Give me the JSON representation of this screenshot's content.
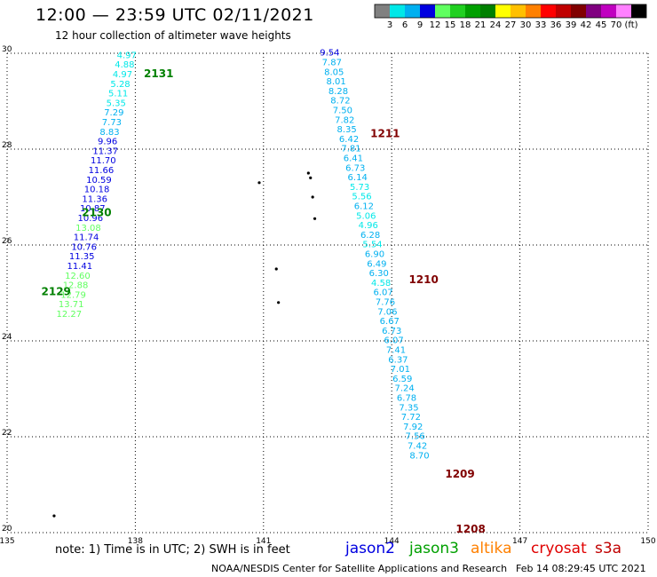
{
  "header": {
    "title": "12:00 — 23:59 UTC 02/11/2021",
    "subtitle": "12 hour collection of altimeter wave heights"
  },
  "legend_bar": {
    "colors": [
      "#808080",
      "#00e8e8",
      "#00b0f0",
      "#0000e0",
      "#60ff60",
      "#20d020",
      "#00a000",
      "#008000",
      "#ffff00",
      "#ffc000",
      "#ff8000",
      "#ff0000",
      "#c00000",
      "#800000",
      "#800080",
      "#c000c0",
      "#ff80ff",
      "#000000"
    ],
    "labels": [
      "3",
      "6",
      "9",
      "12",
      "15",
      "18",
      "21",
      "24",
      "27",
      "30",
      "33",
      "36",
      "39",
      "42",
      "45",
      "70",
      "(ft)"
    ]
  },
  "footer": {
    "note": "note: 1) Time is in UTC; 2) SWH is in feet",
    "credit": "NOAA/NESDIS Center for Satellite Applications and Research",
    "generated": "Feb 14 08:29:45 UTC 2021"
  },
  "satellites": [
    {
      "name": "jason2",
      "color": "#0000e0"
    },
    {
      "name": "jason3",
      "color": "#00a000"
    },
    {
      "name": "altika",
      "color": "#ff8000"
    },
    {
      "name": "cryosat",
      "color": "#e00000"
    },
    {
      "name": "s3a",
      "color": "#c00000"
    }
  ],
  "chart_data": {
    "type": "scatter",
    "xlim": [
      135,
      150
    ],
    "ylim": [
      20,
      30
    ],
    "x_ticks": [
      135,
      138,
      141,
      144,
      147,
      150
    ],
    "y_ticks": [
      20,
      22,
      24,
      26,
      28,
      30
    ],
    "grid": true,
    "track_labels": [
      {
        "text": "2131",
        "lon": 138.2,
        "lat": 29.5,
        "color": "#008000"
      },
      {
        "text": "2130",
        "lon": 136.75,
        "lat": 26.6,
        "color": "#008000"
      },
      {
        "text": "2129",
        "lon": 135.8,
        "lat": 24.95,
        "color": "#008000"
      },
      {
        "text": "1211",
        "lon": 143.5,
        "lat": 28.25,
        "color": "#800000"
      },
      {
        "text": "1210",
        "lon": 144.4,
        "lat": 25.2,
        "color": "#800000"
      },
      {
        "text": "1209",
        "lon": 145.25,
        "lat": 21.15,
        "color": "#800000"
      },
      {
        "text": "1208",
        "lon": 145.5,
        "lat": 20.0,
        "color": "#800000"
      }
    ],
    "series": [
      {
        "name": "2131",
        "color_scale": true,
        "points": [
          {
            "lon": 137.8,
            "lat": 29.9,
            "v": 4.97
          },
          {
            "lon": 137.75,
            "lat": 29.7,
            "v": 4.88
          },
          {
            "lon": 137.7,
            "lat": 29.5,
            "v": 4.97
          },
          {
            "lon": 137.65,
            "lat": 29.3,
            "v": 5.28
          },
          {
            "lon": 137.6,
            "lat": 29.1,
            "v": 5.11
          },
          {
            "lon": 137.55,
            "lat": 28.9,
            "v": 5.35
          },
          {
            "lon": 137.5,
            "lat": 28.7,
            "v": 7.29
          },
          {
            "lon": 137.45,
            "lat": 28.5,
            "v": 7.73
          },
          {
            "lon": 137.4,
            "lat": 28.3,
            "v": 8.83
          },
          {
            "lon": 137.35,
            "lat": 28.1,
            "v": 9.96
          },
          {
            "lon": 137.3,
            "lat": 27.9,
            "v": 11.37
          }
        ]
      },
      {
        "name": "2130",
        "color_scale": true,
        "points": [
          {
            "lon": 137.25,
            "lat": 27.7,
            "v": 11.7
          },
          {
            "lon": 137.2,
            "lat": 27.5,
            "v": 11.66
          },
          {
            "lon": 137.15,
            "lat": 27.3,
            "v": 10.59
          },
          {
            "lon": 137.1,
            "lat": 27.1,
            "v": 10.18
          },
          {
            "lon": 137.05,
            "lat": 26.9,
            "v": 11.36
          },
          {
            "lon": 137.0,
            "lat": 26.7,
            "v": 10.87
          },
          {
            "lon": 136.95,
            "lat": 26.5,
            "v": 10.96
          },
          {
            "lon": 136.9,
            "lat": 26.3,
            "v": 13.08
          },
          {
            "lon": 136.85,
            "lat": 26.1,
            "v": 11.74
          },
          {
            "lon": 136.8,
            "lat": 25.9,
            "v": 10.76
          }
        ]
      },
      {
        "name": "2129",
        "color_scale": true,
        "points": [
          {
            "lon": 136.75,
            "lat": 25.7,
            "v": 11.35
          },
          {
            "lon": 136.7,
            "lat": 25.5,
            "v": 11.41
          },
          {
            "lon": 136.65,
            "lat": 25.3,
            "v": 12.6
          },
          {
            "lon": 136.6,
            "lat": 25.1,
            "v": 12.88
          },
          {
            "lon": 136.55,
            "lat": 24.9,
            "v": 12.79
          },
          {
            "lon": 136.5,
            "lat": 24.7,
            "v": 13.71
          },
          {
            "lon": 136.45,
            "lat": 24.5,
            "v": 12.27
          }
        ]
      },
      {
        "name": "1211",
        "color_scale": true,
        "points": [
          {
            "lon": 142.55,
            "lat": 29.95,
            "v": 9.54
          },
          {
            "lon": 142.6,
            "lat": 29.75,
            "v": 7.87
          },
          {
            "lon": 142.65,
            "lat": 29.55,
            "v": 8.05
          },
          {
            "lon": 142.7,
            "lat": 29.35,
            "v": 8.01
          },
          {
            "lon": 142.75,
            "lat": 29.15,
            "v": 8.28
          },
          {
            "lon": 142.8,
            "lat": 28.95,
            "v": 8.72
          },
          {
            "lon": 142.85,
            "lat": 28.75,
            "v": 7.5
          },
          {
            "lon": 142.9,
            "lat": 28.55,
            "v": 7.82
          },
          {
            "lon": 142.95,
            "lat": 28.35,
            "v": 8.35
          }
        ]
      },
      {
        "name": "1210",
        "color_scale": true,
        "points": [
          {
            "lon": 143.0,
            "lat": 28.15,
            "v": 6.42
          },
          {
            "lon": 143.05,
            "lat": 27.95,
            "v": 7.81
          },
          {
            "lon": 143.1,
            "lat": 27.75,
            "v": 6.41
          },
          {
            "lon": 143.15,
            "lat": 27.55,
            "v": 6.73
          },
          {
            "lon": 143.2,
            "lat": 27.35,
            "v": 6.14
          },
          {
            "lon": 143.25,
            "lat": 27.15,
            "v": 5.73
          },
          {
            "lon": 143.3,
            "lat": 26.95,
            "v": 5.56
          },
          {
            "lon": 143.35,
            "lat": 26.75,
            "v": 6.12
          },
          {
            "lon": 143.4,
            "lat": 26.55,
            "v": 5.06
          },
          {
            "lon": 143.45,
            "lat": 26.35,
            "v": 4.96
          },
          {
            "lon": 143.5,
            "lat": 26.15,
            "v": 6.28
          },
          {
            "lon": 143.55,
            "lat": 25.95,
            "v": 5.54
          },
          {
            "lon": 143.6,
            "lat": 25.75,
            "v": 6.9
          },
          {
            "lon": 143.65,
            "lat": 25.55,
            "v": 6.49
          },
          {
            "lon": 143.7,
            "lat": 25.35,
            "v": 6.3
          },
          {
            "lon": 143.75,
            "lat": 25.15,
            "v": 4.58
          },
          {
            "lon": 143.8,
            "lat": 24.95,
            "v": 6.07
          }
        ]
      },
      {
        "name": "1209",
        "color_scale": true,
        "points": [
          {
            "lon": 143.85,
            "lat": 24.75,
            "v": 7.76
          },
          {
            "lon": 143.9,
            "lat": 24.55,
            "v": 7.06
          },
          {
            "lon": 143.95,
            "lat": 24.35,
            "v": 6.67
          },
          {
            "lon": 144.0,
            "lat": 24.15,
            "v": 6.73
          },
          {
            "lon": 144.05,
            "lat": 23.95,
            "v": 6.07
          },
          {
            "lon": 144.1,
            "lat": 23.75,
            "v": 7.41
          },
          {
            "lon": 144.15,
            "lat": 23.55,
            "v": 6.37
          },
          {
            "lon": 144.2,
            "lat": 23.35,
            "v": 7.01
          },
          {
            "lon": 144.25,
            "lat": 23.15,
            "v": 6.59
          },
          {
            "lon": 144.3,
            "lat": 22.95,
            "v": 7.24
          },
          {
            "lon": 144.35,
            "lat": 22.75,
            "v": 6.78
          },
          {
            "lon": 144.4,
            "lat": 22.55,
            "v": 7.35
          },
          {
            "lon": 144.45,
            "lat": 22.35,
            "v": 7.72
          }
        ]
      },
      {
        "name": "1208",
        "color_scale": true,
        "points": [
          {
            "lon": 144.5,
            "lat": 22.15,
            "v": 7.92
          },
          {
            "lon": 144.55,
            "lat": 21.95,
            "v": 7.56
          },
          {
            "lon": 144.6,
            "lat": 21.75,
            "v": 7.42
          },
          {
            "lon": 144.65,
            "lat": 21.55,
            "v": 8.7
          }
        ]
      }
    ],
    "land_dots": [
      {
        "lon": 142.05,
        "lat": 27.5
      },
      {
        "lon": 142.1,
        "lat": 27.4
      },
      {
        "lon": 142.15,
        "lat": 27.0
      },
      {
        "lon": 142.2,
        "lat": 26.55
      },
      {
        "lon": 140.9,
        "lat": 27.3
      },
      {
        "lon": 141.3,
        "lat": 25.5
      },
      {
        "lon": 141.35,
        "lat": 24.8
      },
      {
        "lon": 136.1,
        "lat": 20.35
      }
    ]
  }
}
